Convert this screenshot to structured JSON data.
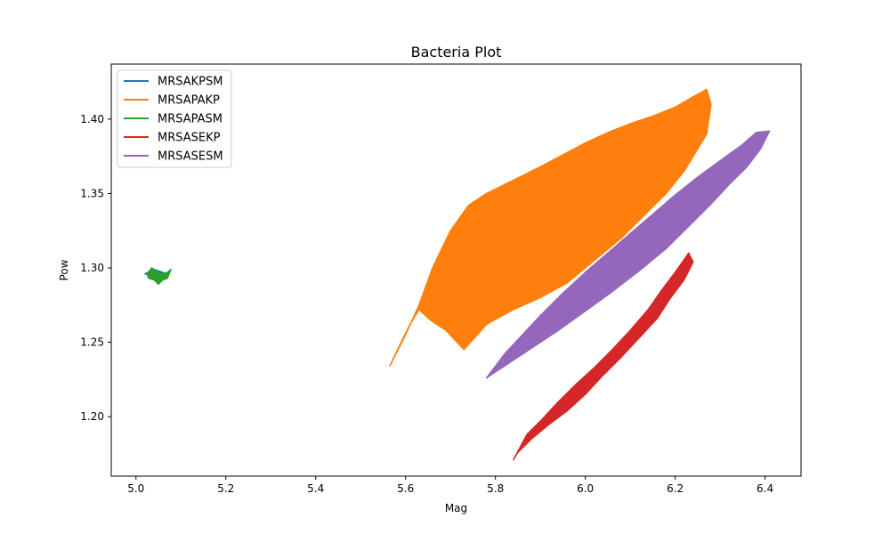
{
  "chart_data": {
    "type": "line",
    "title": "Bacteria Plot",
    "xlabel": "Mag",
    "ylabel": "Pow",
    "xlim": [
      4.945,
      6.48
    ],
    "ylim": [
      1.16,
      1.437
    ],
    "x_ticks": [
      5.0,
      5.2,
      5.4,
      5.6,
      5.8,
      6.0,
      6.2,
      6.4
    ],
    "x_tick_labels": [
      "5.0",
      "5.2",
      "5.4",
      "5.6",
      "5.8",
      "6.0",
      "6.2",
      "6.4"
    ],
    "y_ticks": [
      1.2,
      1.25,
      1.3,
      1.35,
      1.4
    ],
    "y_tick_labels": [
      "1.20",
      "1.25",
      "1.30",
      "1.35",
      "1.40"
    ],
    "grid": false,
    "legend_position": "top-left",
    "series": [
      {
        "name": "MRSAKPSM",
        "color": "#1f77b4",
        "x": [
          5.02,
          5.04,
          5.06,
          5.07,
          5.05,
          5.03
        ],
        "y": [
          1.296,
          1.299,
          1.297,
          1.295,
          1.293,
          1.295
        ]
      },
      {
        "name": "MRSAPAKP",
        "color": "#ff7f0e",
        "x": [
          5.565,
          5.6,
          5.63,
          5.66,
          5.7,
          5.74,
          5.78,
          5.82,
          5.86,
          5.9,
          5.95,
          6.0,
          6.05,
          6.1,
          6.15,
          6.2,
          6.24,
          6.27,
          6.28,
          6.27,
          6.25,
          6.22,
          6.18,
          6.13,
          6.08,
          6.02,
          5.96,
          5.9,
          5.84,
          5.78,
          5.73,
          5.69,
          5.655,
          5.63,
          5.61,
          5.59,
          5.565
        ],
        "y": [
          1.234,
          1.255,
          1.275,
          1.3,
          1.325,
          1.342,
          1.35,
          1.356,
          1.362,
          1.368,
          1.376,
          1.384,
          1.391,
          1.397,
          1.402,
          1.408,
          1.415,
          1.42,
          1.41,
          1.39,
          1.38,
          1.365,
          1.35,
          1.335,
          1.32,
          1.305,
          1.29,
          1.28,
          1.272,
          1.262,
          1.245,
          1.258,
          1.265,
          1.272,
          1.262,
          1.25,
          1.234
        ]
      },
      {
        "name": "MRSAPASM",
        "color": "#2ca02c",
        "x": [
          5.025,
          5.035,
          5.05,
          5.06,
          5.07,
          5.078,
          5.07,
          5.06,
          5.05,
          5.04,
          5.028,
          5.025
        ],
        "y": [
          1.296,
          1.3,
          1.297,
          1.296,
          1.297,
          1.299,
          1.293,
          1.292,
          1.289,
          1.292,
          1.293,
          1.296
        ]
      },
      {
        "name": "MRSASEKP",
        "color": "#d62728",
        "x": [
          5.84,
          5.87,
          5.9,
          5.94,
          5.98,
          6.02,
          6.06,
          6.1,
          6.14,
          6.17,
          6.2,
          6.23,
          6.24,
          6.22,
          6.19,
          6.16,
          6.12,
          6.08,
          6.04,
          6.0,
          5.96,
          5.92,
          5.88,
          5.85,
          5.84
        ],
        "y": [
          1.171,
          1.188,
          1.197,
          1.21,
          1.222,
          1.233,
          1.245,
          1.258,
          1.272,
          1.285,
          1.297,
          1.31,
          1.304,
          1.292,
          1.28,
          1.266,
          1.253,
          1.24,
          1.228,
          1.215,
          1.204,
          1.195,
          1.185,
          1.176,
          1.171
        ]
      },
      {
        "name": "MRSASESM",
        "color": "#9467bd",
        "x": [
          5.78,
          5.82,
          5.86,
          5.9,
          5.95,
          6.0,
          6.05,
          6.1,
          6.15,
          6.2,
          6.25,
          6.3,
          6.35,
          6.38,
          6.41,
          6.39,
          6.36,
          6.32,
          6.28,
          6.23,
          6.18,
          6.12,
          6.06,
          6.0,
          5.94,
          5.88,
          5.83,
          5.79,
          5.78
        ],
        "y": [
          1.226,
          1.242,
          1.255,
          1.268,
          1.283,
          1.297,
          1.31,
          1.323,
          1.336,
          1.349,
          1.361,
          1.372,
          1.383,
          1.391,
          1.392,
          1.38,
          1.368,
          1.356,
          1.343,
          1.328,
          1.313,
          1.298,
          1.284,
          1.271,
          1.258,
          1.246,
          1.236,
          1.228,
          1.226
        ]
      }
    ]
  }
}
